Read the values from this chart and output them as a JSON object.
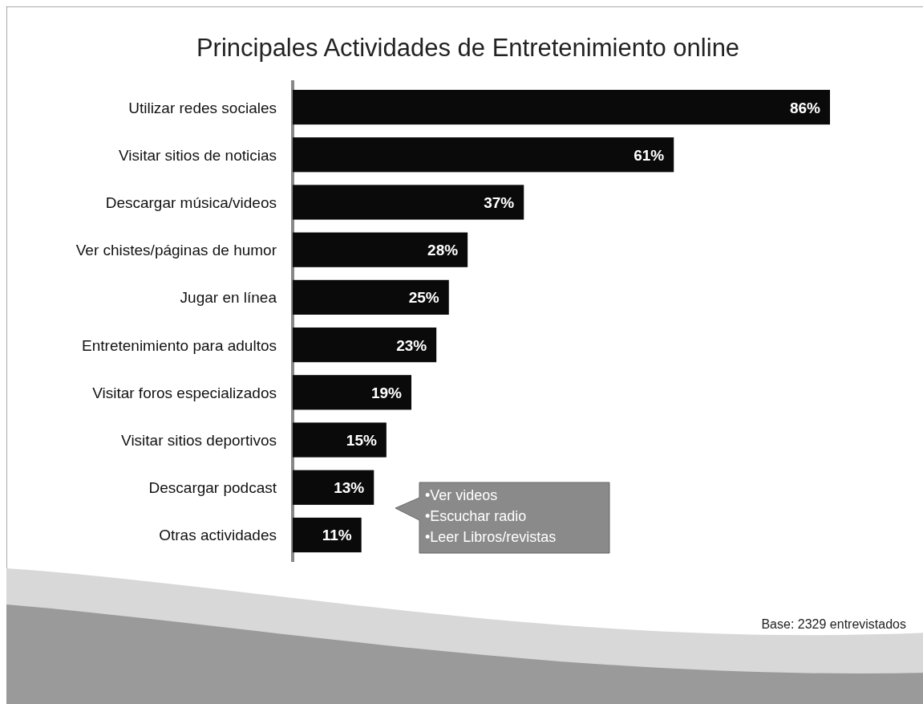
{
  "chart_data": {
    "type": "bar",
    "orientation": "horizontal",
    "title": "Principales Actividades de Entretenimiento online",
    "categories": [
      "Utilizar redes sociales",
      "Visitar sitios de noticias",
      "Descargar música/videos",
      "Ver chistes/páginas de humor",
      "Jugar en línea",
      "Entretenimiento para adultos",
      "Visitar foros especializados",
      "Visitar sitios deportivos",
      "Descargar podcast",
      "Otras actividades"
    ],
    "values": [
      86,
      61,
      37,
      28,
      25,
      23,
      19,
      15,
      13,
      11
    ],
    "value_labels": [
      "86%",
      "61%",
      "37%",
      "28%",
      "25%",
      "23%",
      "19%",
      "15%",
      "13%",
      "11%"
    ],
    "color": "#0a0a0a",
    "annotations": [
      "•Ver videos\n•Escuchar radio\n•Leer Libros/revistas",
      "Base: 2329 entrevistados"
    ]
  }
}
